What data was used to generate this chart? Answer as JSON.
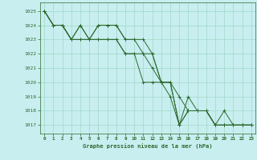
{
  "bg_color": "#c8eef0",
  "grid_color": "#a0d8c8",
  "line_color": "#2d6a2d",
  "xlabel": "Graphe pression niveau de la mer (hPa)",
  "ylim": [
    1016.4,
    1025.6
  ],
  "xlim": [
    -0.5,
    23.5
  ],
  "yticks": [
    1017,
    1018,
    1019,
    1020,
    1021,
    1022,
    1023,
    1024,
    1025
  ],
  "xticks": [
    0,
    1,
    2,
    3,
    4,
    5,
    6,
    7,
    8,
    9,
    10,
    11,
    12,
    13,
    14,
    15,
    16,
    17,
    18,
    19,
    20,
    21,
    22,
    23
  ],
  "series": [
    [
      1025,
      1024,
      1024,
      1023,
      1024,
      1023,
      1024,
      1024,
      1024,
      1023,
      1023,
      1023,
      1022,
      1020,
      1020,
      1017,
      1018,
      1018,
      1018,
      1017,
      1017,
      1017,
      1017,
      1017
    ],
    [
      1025,
      1024,
      1024,
      1023,
      1023,
      1023,
      1023,
      1023,
      1023,
      1022,
      1022,
      1022,
      1021,
      1020,
      1020,
      1019,
      1018,
      1018,
      1018,
      1017,
      1017,
      1017,
      1017,
      1017
    ],
    [
      1025,
      1024,
      1024,
      1023,
      1023,
      1023,
      1023,
      1023,
      1023,
      1022,
      1022,
      1020,
      1020,
      1020,
      1019,
      1017,
      1018,
      1018,
      1018,
      1017,
      1017,
      1017,
      1017,
      1017
    ],
    [
      1025,
      1024,
      1024,
      1023,
      1024,
      1023,
      1024,
      1024,
      1024,
      1023,
      1023,
      1022,
      1022,
      1020,
      1020,
      1017,
      1019,
      1018,
      1018,
      1017,
      1018,
      1017,
      1017,
      1017
    ]
  ]
}
